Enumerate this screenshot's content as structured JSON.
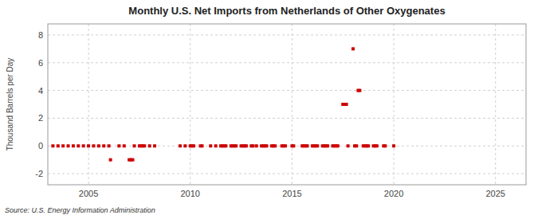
{
  "chart_data": {
    "type": "scatter",
    "title": "Monthly U.S. Net Imports from Netherlands of Other Oxygenates",
    "ylabel": "Thousand Barrels per Day",
    "source": "Source: U.S. Energy Information Administration",
    "color": "#cc0000",
    "marker": "square",
    "grid": true,
    "xlim": [
      2003.0,
      2026.5
    ],
    "ylim": [
      -2.8,
      8.8
    ],
    "xticks": [
      2005,
      2010,
      2015,
      2020,
      2025
    ],
    "yticks": [
      -2,
      0,
      2,
      4,
      6,
      8
    ],
    "x": [
      2003.25,
      2003.5,
      2003.75,
      2004.0,
      2004.25,
      2004.5,
      2004.75,
      2005.0,
      2005.25,
      2005.5,
      2005.75,
      2006.0,
      2006.08,
      2006.5,
      2006.75,
      2007.0,
      2007.08,
      2007.17,
      2007.25,
      2007.5,
      2007.58,
      2007.67,
      2007.75,
      2008.0,
      2008.25,
      2009.5,
      2009.75,
      2010.0,
      2010.08,
      2010.17,
      2010.5,
      2010.58,
      2011.0,
      2011.25,
      2011.5,
      2011.58,
      2011.67,
      2011.75,
      2012.0,
      2012.08,
      2012.17,
      2012.25,
      2012.5,
      2012.58,
      2012.67,
      2012.75,
      2013.0,
      2013.08,
      2013.25,
      2013.5,
      2013.58,
      2013.67,
      2013.75,
      2014.0,
      2014.08,
      2014.17,
      2014.5,
      2014.58,
      2014.67,
      2015.0,
      2015.08,
      2015.5,
      2015.58,
      2015.67,
      2015.75,
      2016.0,
      2016.08,
      2016.17,
      2016.25,
      2016.5,
      2016.58,
      2016.67,
      2016.75,
      2017.0,
      2017.08,
      2017.17,
      2017.25,
      2017.5,
      2017.58,
      2017.67,
      2017.75,
      2018.0,
      2018.08,
      2018.17,
      2018.25,
      2018.33,
      2018.5,
      2018.58,
      2018.67,
      2018.75,
      2019.0,
      2019.08,
      2019.17,
      2019.5,
      2019.58,
      2020.0
    ],
    "values": [
      0,
      0,
      0,
      0,
      0,
      0,
      0,
      0,
      0,
      0,
      0,
      0,
      -1,
      0,
      0,
      -1,
      -1,
      -1,
      0,
      0,
      0,
      0,
      0,
      0,
      0,
      0,
      0,
      0,
      0,
      0,
      0,
      0,
      0,
      0,
      0,
      0,
      0,
      0,
      0,
      0,
      0,
      0,
      0,
      0,
      0,
      0,
      0,
      0,
      0,
      0,
      0,
      0,
      0,
      0,
      0,
      0,
      0,
      0,
      0,
      0,
      0,
      0,
      0,
      0,
      0,
      0,
      0,
      0,
      0,
      0,
      0,
      0,
      0,
      0,
      0,
      0,
      0,
      3,
      3,
      3,
      0,
      7,
      0,
      0,
      4,
      4,
      0,
      0,
      0,
      0,
      0,
      0,
      0,
      0,
      0,
      0
    ]
  }
}
